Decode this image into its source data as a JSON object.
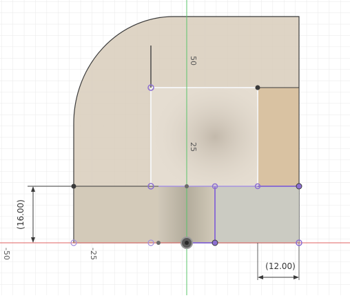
{
  "viewport": {
    "axis_labels": {
      "y_upper": "50",
      "y_mid": "25",
      "x_left_far": "-50",
      "x_left_near": "-25"
    },
    "dimensions": {
      "height_dimension": "(16.00)",
      "width_dimension": "(12.00)"
    }
  },
  "colors": {
    "profile_fill": "#d8cdbb",
    "profile_fill_dark": "#cbbfae",
    "inner_rect_fill": "#e3dbcf",
    "x_axis": "#e06060",
    "y_axis": "#59c46a",
    "grid": "#e6e6e6",
    "sketch_line": "#3a3a3a",
    "selected_point": "#8c6fd1",
    "highlight_strip": "#c9c5cc"
  }
}
